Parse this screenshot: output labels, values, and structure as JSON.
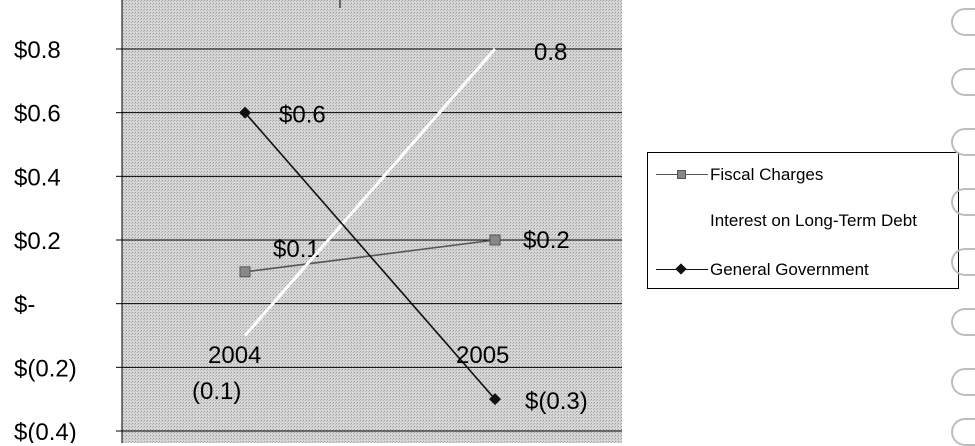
{
  "chart_data": {
    "type": "line",
    "categories": [
      "2004",
      "2005"
    ],
    "ylim": [
      -0.4,
      0.8
    ],
    "yticks": [
      0.8,
      0.6,
      0.4,
      0.2,
      0,
      -0.2,
      -0.4
    ],
    "ytick_labels": [
      "$0.8",
      "$0.6",
      "$0.4",
      "$0.2",
      "$-",
      "$(0.2)",
      "$(0.4)"
    ],
    "grid": true,
    "legend_position": "right",
    "series": [
      {
        "name": "Fiscal Charges",
        "values": [
          0.1,
          0.2
        ],
        "color": "#555555",
        "marker": "square",
        "data_labels": [
          "$0.1",
          "$0.2"
        ]
      },
      {
        "name": "Interest on Long-Term Debt",
        "values": [
          -0.1,
          0.8
        ],
        "color": "#ffffff",
        "marker": "none",
        "data_labels": [
          "(0.1)",
          "0.8"
        ]
      },
      {
        "name": "General Government",
        "values": [
          0.6,
          -0.3
        ],
        "color": "#111111",
        "marker": "diamond",
        "data_labels": [
          "$0.6",
          "$(0.3)"
        ]
      }
    ]
  },
  "legend": {
    "items": [
      "Fiscal Charges",
      "Interest on Long-Term Debt",
      "General Government"
    ]
  }
}
